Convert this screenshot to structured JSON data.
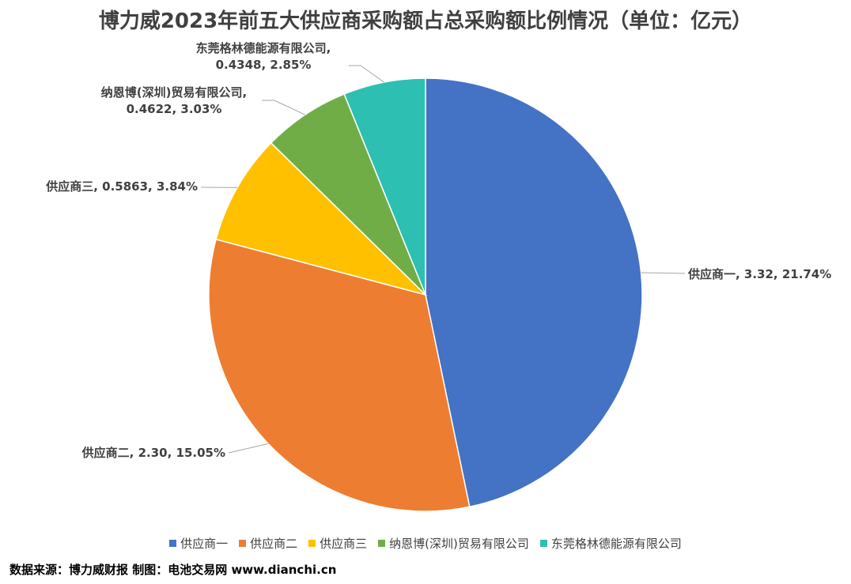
{
  "chart_data": {
    "type": "pie",
    "title": "博力威2023年前五大供应商采购额占总采购额比例情况（单位：亿元）",
    "categories": [
      "供应商一",
      "供应商二",
      "供应商三",
      "纳恩博(深圳)贸易有限公司",
      "东莞格林德能源有限公司"
    ],
    "values": [
      3.32,
      2.3,
      0.5863,
      0.4622,
      0.4348
    ],
    "data_labels": [
      [
        "供应商一, 3.32, 21.74%"
      ],
      [
        "供应商二, 2.30, 15.05%"
      ],
      [
        "供应商三, 0.5863, 3.84%"
      ],
      [
        "纳恩博(深圳)贸易有限公司,",
        "0.4622, 3.03%"
      ],
      [
        "东莞格林德能源有限公司,",
        "0.4348, 2.85%"
      ]
    ],
    "colors": [
      "#4472C4",
      "#ED7D31",
      "#FFC000",
      "#70AD47",
      "#2EBFB3"
    ],
    "start_position": "12 o'clock, clockwise",
    "legend_position": "bottom"
  },
  "footer": {
    "source": "数据来源：博力威财报  制图：电池交易网 www.dianchi.cn"
  }
}
